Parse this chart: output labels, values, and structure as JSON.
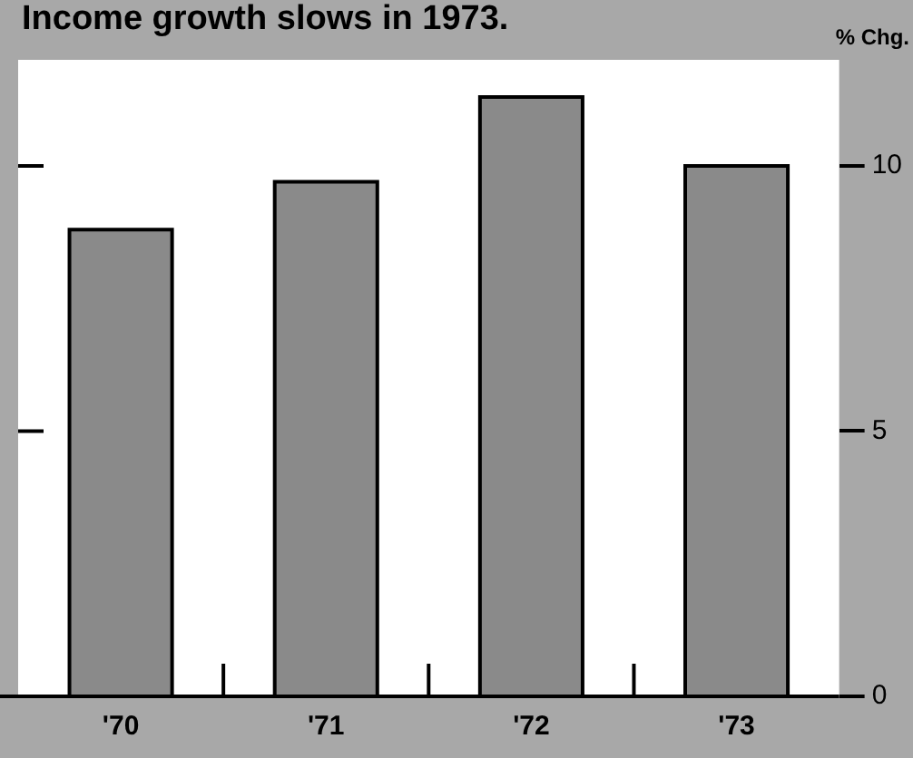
{
  "chart_data": {
    "type": "bar",
    "title": "Income growth slows in 1973.",
    "ylabel": "% Chg.",
    "categories": [
      "'70",
      "'71",
      "'72",
      "'73"
    ],
    "values": [
      8.8,
      9.7,
      11.3,
      10.0
    ],
    "color": "#8a8a8a",
    "ylim": [
      0,
      12
    ],
    "yticks": [
      0,
      5,
      10
    ],
    "grid": false
  }
}
